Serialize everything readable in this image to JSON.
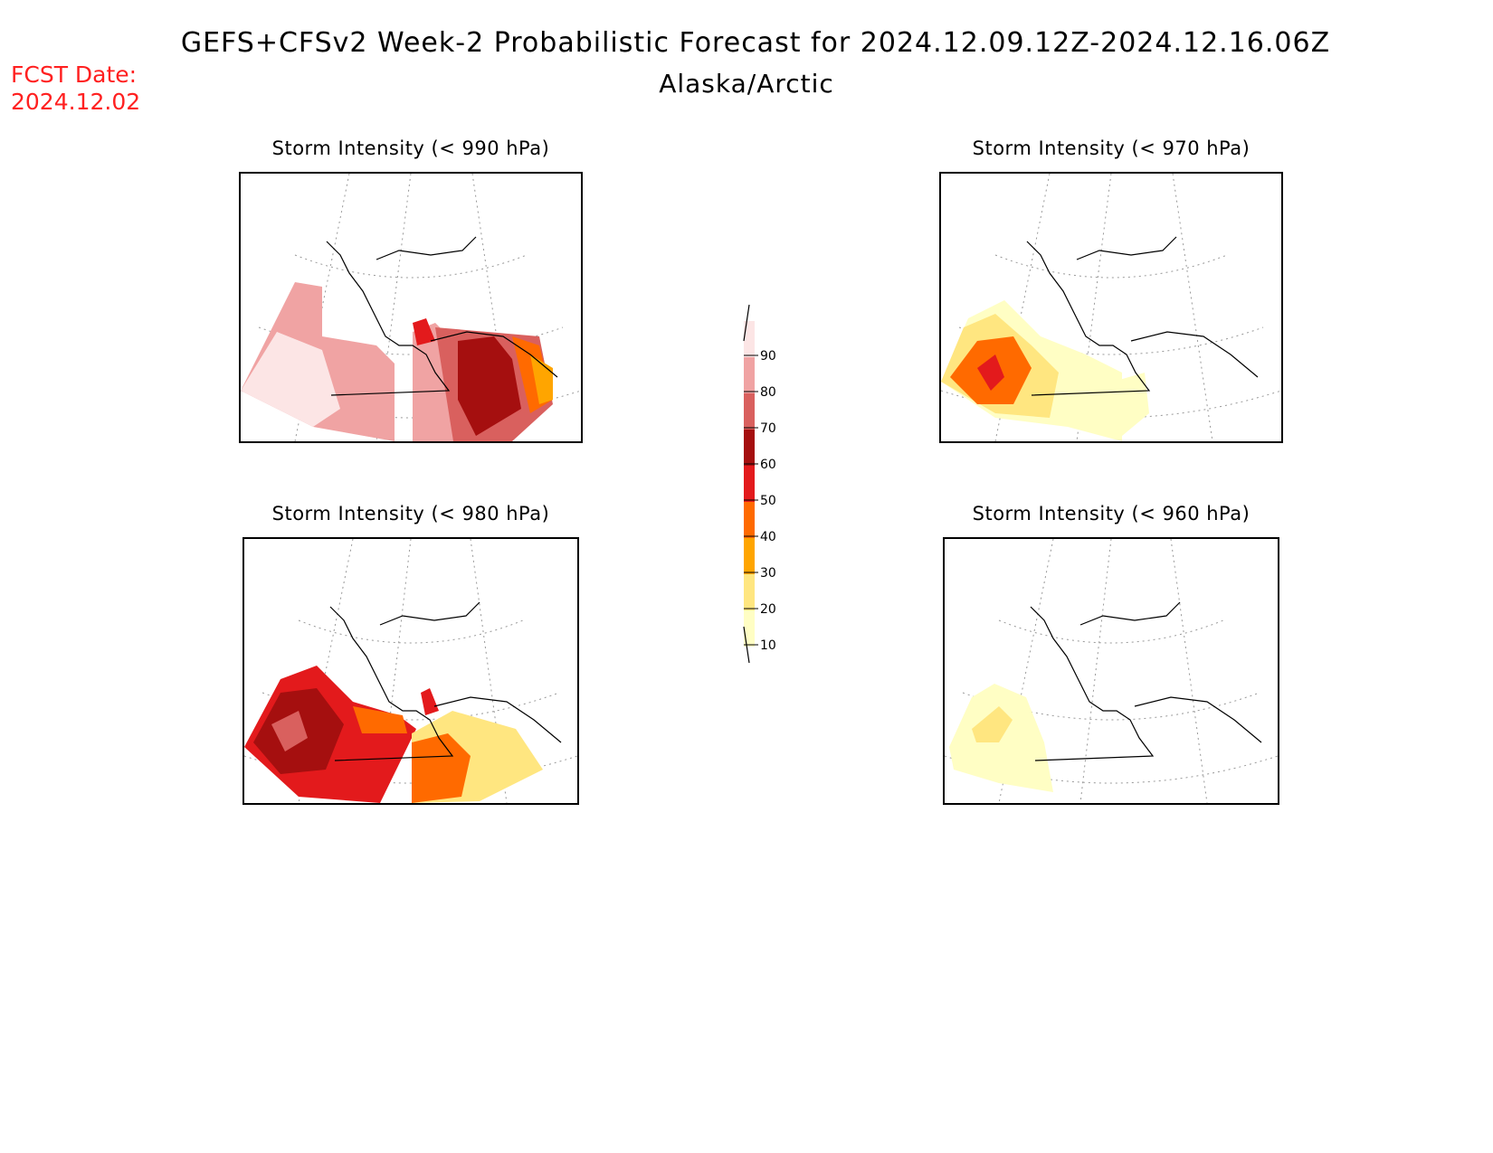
{
  "header": {
    "title": "GEFS+CFSv2 Week-2 Probabilistic Forecast for 2024.12.09.12Z-2024.12.16.06Z",
    "region": "Alaska/Arctic",
    "fcst_label": "FCST Date:",
    "fcst_date": "2024.12.02"
  },
  "panels": [
    {
      "id": "p990",
      "title": "Storm Intensity (< 990 hPa)"
    },
    {
      "id": "p970",
      "title": "Storm Intensity (< 970 hPa)"
    },
    {
      "id": "p980",
      "title": "Storm Intensity (< 980 hPa)"
    },
    {
      "id": "p960",
      "title": "Storm Intensity (< 960 hPa)"
    }
  ],
  "colorbar": {
    "levels": [
      "10",
      "20",
      "30",
      "40",
      "50",
      "60",
      "70",
      "80",
      "90"
    ],
    "colors": [
      "#fffec4",
      "#ffe680",
      "#ffa500",
      "#ff6a00",
      "#e31a1c",
      "#a50f0f",
      "#d9605e",
      "#f0a3a3",
      "#fce5e5"
    ]
  }
}
